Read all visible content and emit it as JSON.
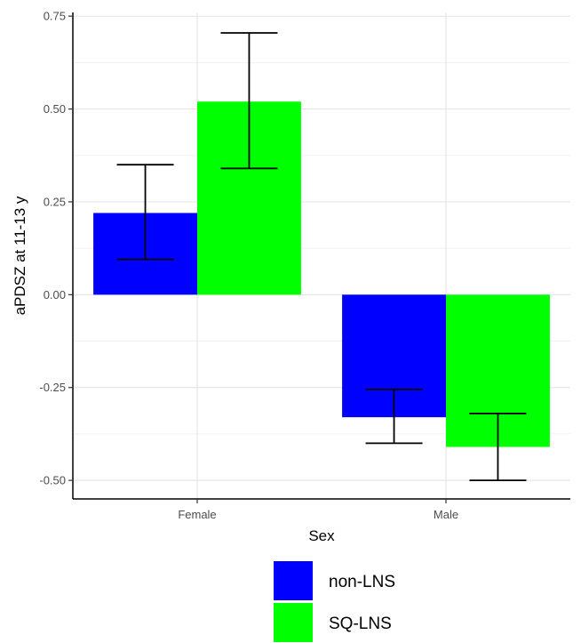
{
  "chart_data": {
    "type": "bar",
    "xlabel": "Sex",
    "ylabel": "aPDSZ at 11-13 y",
    "categories": [
      "Female",
      "Male"
    ],
    "ylim": [
      -0.55,
      0.76
    ],
    "yticks": [
      "-0.50",
      "-0.25",
      "0.00",
      "0.25",
      "0.50",
      "0.75"
    ],
    "grid": true,
    "legend_position": "bottom",
    "series": [
      {
        "name": "non-LNS",
        "color": "#0000FF",
        "values": [
          0.22,
          -0.33
        ],
        "error_low": [
          0.095,
          -0.4
        ],
        "error_high": [
          0.35,
          -0.255
        ]
      },
      {
        "name": "SQ-LNS",
        "color": "#00FF00",
        "values": [
          0.52,
          -0.41
        ],
        "error_low": [
          0.34,
          -0.5
        ],
        "error_high": [
          0.705,
          -0.32
        ]
      }
    ]
  }
}
